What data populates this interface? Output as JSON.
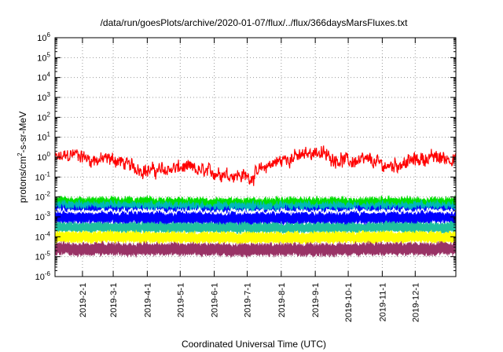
{
  "chart_data": {
    "type": "line",
    "title": "/data/run/goesPlots/archive/2020-01-07/flux/../flux/366daysMarsFluxes.txt",
    "xlabel": "Coordinated Universal Time (UTC)",
    "ylabel": {
      "prefix": "protons/cm",
      "sup": "2",
      "suffix": "-s-sr-MeV"
    },
    "yscale": "log",
    "ylim": [
      1e-06,
      1000000.0
    ],
    "xlim": [
      "2019-01-07",
      "2020-01-07"
    ],
    "grid": true,
    "y_ticks": [
      {
        "base": "10",
        "exp": "-6"
      },
      {
        "base": "10",
        "exp": "-5"
      },
      {
        "base": "10",
        "exp": "-4"
      },
      {
        "base": "10",
        "exp": "-3"
      },
      {
        "base": "10",
        "exp": "-2"
      },
      {
        "base": "10",
        "exp": "-1"
      },
      {
        "base": "10",
        "exp": "0"
      },
      {
        "base": "10",
        "exp": "1"
      },
      {
        "base": "10",
        "exp": "2"
      },
      {
        "base": "10",
        "exp": "3"
      },
      {
        "base": "10",
        "exp": "4"
      },
      {
        "base": "10",
        "exp": "5"
      },
      {
        "base": "10",
        "exp": "6"
      }
    ],
    "x_ticks": [
      "2019-2-1",
      "2019-3-1",
      "2019-4-1",
      "2019-5-1",
      "2019-6-1",
      "2019-7-1",
      "2019-8-1",
      "2019-9-1",
      "2019-10-1",
      "2019-11-1",
      "2019-12-1"
    ],
    "x_tick_dates": [
      "2019-02-01",
      "2019-03-01",
      "2019-04-01",
      "2019-05-01",
      "2019-06-01",
      "2019-07-01",
      "2019-08-01",
      "2019-09-01",
      "2019-10-01",
      "2019-11-01",
      "2019-12-01"
    ],
    "series": [
      {
        "color": "#ff0000",
        "points": [
          {
            "x": "2019-01-07",
            "y": 0.8
          },
          {
            "x": "2019-01-25",
            "y": 1.5
          },
          {
            "x": "2019-02-10",
            "y": 0.7
          },
          {
            "x": "2019-03-01",
            "y": 0.8
          },
          {
            "x": "2019-03-15",
            "y": 0.4
          },
          {
            "x": "2019-04-01",
            "y": 0.2
          },
          {
            "x": "2019-04-20",
            "y": 0.25
          },
          {
            "x": "2019-05-05",
            "y": 0.3
          },
          {
            "x": "2019-05-20",
            "y": 0.2
          },
          {
            "x": "2019-06-10",
            "y": 0.15
          },
          {
            "x": "2019-06-25",
            "y": 0.12
          },
          {
            "x": "2019-07-05",
            "y": 0.1
          },
          {
            "x": "2019-07-20",
            "y": 0.4
          },
          {
            "x": "2019-08-05",
            "y": 0.8
          },
          {
            "x": "2019-08-20",
            "y": 1.2
          },
          {
            "x": "2019-09-01",
            "y": 2.0
          },
          {
            "x": "2019-09-20",
            "y": 0.8
          },
          {
            "x": "2019-10-05",
            "y": 0.6
          },
          {
            "x": "2019-10-20",
            "y": 0.7
          },
          {
            "x": "2019-11-05",
            "y": 0.35
          },
          {
            "x": "2019-11-20",
            "y": 0.5
          },
          {
            "x": "2019-12-05",
            "y": 0.8
          },
          {
            "x": "2019-12-20",
            "y": 1.0
          },
          {
            "x": "2020-01-07",
            "y": 0.8
          }
        ],
        "spread_decades": 0.9,
        "band": false
      },
      {
        "color": "#00e000",
        "points": [
          {
            "x": "2019-01-07",
            "y": 0.0045
          },
          {
            "x": "2019-07-01",
            "y": 0.004
          },
          {
            "x": "2020-01-07",
            "y": 0.0045
          }
        ],
        "spread_decades": 0.55,
        "band": true
      },
      {
        "color": "#00b8b8",
        "points": [
          {
            "x": "2019-01-07",
            "y": 0.0025
          },
          {
            "x": "2019-07-01",
            "y": 0.0022
          },
          {
            "x": "2020-01-07",
            "y": 0.0025
          }
        ],
        "spread_decades": 0.6,
        "band": true
      },
      {
        "color": "#0000ff",
        "points": [
          {
            "x": "2019-01-07",
            "y": 0.0012
          },
          {
            "x": "2019-07-01",
            "y": 0.001
          },
          {
            "x": "2020-01-07",
            "y": 0.0012
          }
        ],
        "spread_decades": 0.7,
        "band": true
      },
      {
        "color": "#ffffff",
        "points": [
          {
            "x": "2019-01-07",
            "y": 0.002
          },
          {
            "x": "2019-07-01",
            "y": 0.0018
          },
          {
            "x": "2020-01-07",
            "y": 0.002
          }
        ],
        "spread_decades": 0.35,
        "band": false
      },
      {
        "color": "#20c0a0",
        "points": [
          {
            "x": "2019-01-07",
            "y": 0.0003
          },
          {
            "x": "2019-07-01",
            "y": 0.00028
          },
          {
            "x": "2020-01-07",
            "y": 0.0003
          }
        ],
        "spread_decades": 0.4,
        "band": true
      },
      {
        "color": "#ffff00",
        "points": [
          {
            "x": "2019-01-07",
            "y": 0.0001
          },
          {
            "x": "2019-07-01",
            "y": 9e-05
          },
          {
            "x": "2020-01-07",
            "y": 0.0001
          }
        ],
        "spread_decades": 0.45,
        "band": true
      },
      {
        "color": "#993366",
        "points": [
          {
            "x": "2019-01-07",
            "y": 2.5e-05
          },
          {
            "x": "2019-07-01",
            "y": 2.2e-05
          },
          {
            "x": "2020-01-07",
            "y": 2.5e-05
          }
        ],
        "spread_decades": 0.5,
        "band": true
      }
    ]
  }
}
